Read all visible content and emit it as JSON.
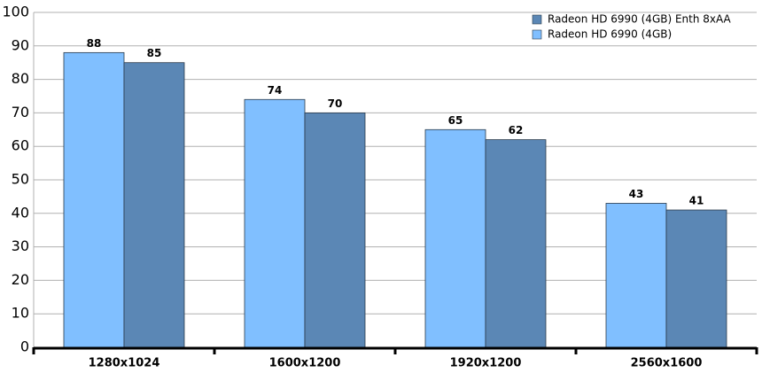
{
  "chart_data": {
    "type": "bar",
    "categories": [
      "1280x1024",
      "1600x1200",
      "1920x1200",
      "2560x1600"
    ],
    "series": [
      {
        "name": "Radeon HD 6990 (4GB)",
        "color": "#80bfff",
        "values": [
          88,
          74,
          65,
          43
        ]
      },
      {
        "name": "Radeon HD 6990 (4GB) Enth 8xAA",
        "color": "#5b87b5",
        "values": [
          85,
          70,
          62,
          41
        ]
      }
    ],
    "ylim": [
      0,
      100
    ],
    "yticks": [
      0,
      10,
      20,
      30,
      40,
      50,
      60,
      70,
      80,
      90,
      100
    ],
    "grid": true,
    "legend": "top-right"
  }
}
